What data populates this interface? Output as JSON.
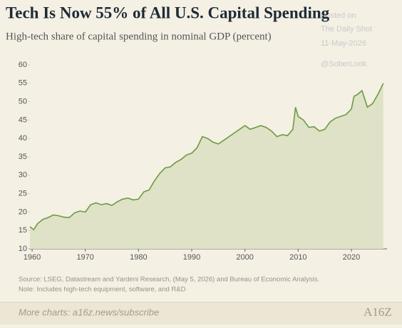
{
  "chart_data": {
    "type": "area",
    "title": "Tech Is Now 55% of All U.S. Capital Spending",
    "subtitle": "High-tech share of capital spending in nominal GDP (percent)",
    "watermark": [
      "Posted on",
      "The Daily Shot",
      "11-May-2026",
      "@SoberLook"
    ],
    "source": "Source: LSEG, Datastream and Yardeni Research, (May 5, 2026) and Bureau of Economic Analysis.",
    "note": "Note: Includes high-tech equipment, software, and R&D",
    "footer_link": "More charts: a16z.news/subscribe",
    "logo": "A16Z",
    "color": "#6c9a42",
    "fill": "#dfe2c6",
    "x": [
      1959.6,
      1960.3,
      1961,
      1962,
      1963,
      1964,
      1965,
      1966,
      1967,
      1968,
      1969,
      1970,
      1971,
      1972,
      1973,
      1974,
      1975,
      1976,
      1977,
      1978,
      1979,
      1980,
      1981,
      1982,
      1983,
      1984,
      1985,
      1986,
      1987,
      1988,
      1989,
      1990,
      1991,
      1992,
      1993,
      1994,
      1995,
      1996,
      1997,
      1998,
      1999,
      2000,
      2001,
      2002,
      2003,
      2004,
      2005,
      2006,
      2007,
      2008,
      2009,
      2009.5,
      2010,
      2011,
      2012,
      2013,
      2014,
      2015,
      2016,
      2017,
      2018,
      2019,
      2020,
      2020.5,
      2021,
      2022,
      2023,
      2024,
      2025,
      2026
    ],
    "values": [
      16,
      15.2,
      16.8,
      18,
      18.5,
      19.2,
      19,
      18.6,
      18.5,
      19.8,
      20.3,
      20,
      22,
      22.5,
      22,
      22.3,
      21.8,
      22.8,
      23.5,
      23.8,
      23.3,
      23.5,
      25.5,
      26,
      28.5,
      30.5,
      32,
      32.3,
      33.5,
      34.3,
      35.5,
      36,
      37.5,
      40.5,
      40,
      39,
      38.5,
      39.5,
      40.5,
      41.5,
      42.5,
      43.5,
      42.5,
      43,
      43.5,
      43,
      42,
      40.5,
      41,
      40.8,
      42.5,
      48.5,
      46,
      45,
      43,
      43.2,
      42,
      42.5,
      44.5,
      45.5,
      46,
      46.5,
      48,
      51.5,
      51.8,
      53,
      48.5,
      49.5,
      52,
      55
    ],
    "xlim": [
      1959.5,
      2026.7
    ],
    "xticks": [
      1960,
      1970,
      1980,
      1990,
      2000,
      2010,
      2020
    ],
    "ylim": [
      10,
      60
    ],
    "yticks": [
      10,
      15,
      20,
      25,
      30,
      35,
      40,
      45,
      50,
      55,
      60
    ]
  }
}
